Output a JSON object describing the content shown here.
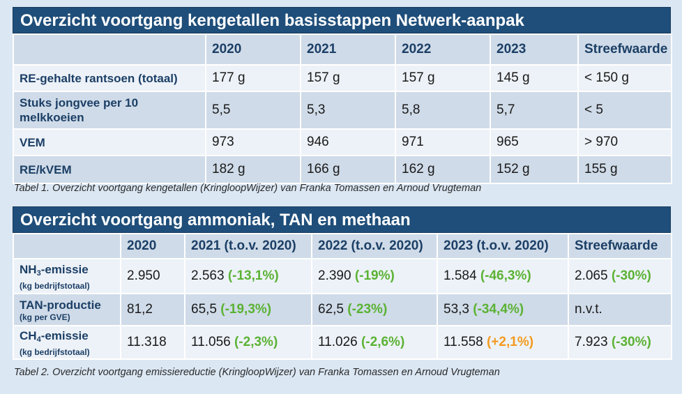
{
  "table1": {
    "title": "Overzicht voortgang kengetallen basisstappen Netwerk-aanpak",
    "headers": [
      "",
      "2020",
      "2021",
      "2022",
      "2023",
      "Streefwaarde"
    ],
    "rows": [
      {
        "label": "RE-gehalte rantsoen (totaal)",
        "cells": [
          "177 g",
          "157 g",
          "157 g",
          "145 g",
          "< 150 g"
        ]
      },
      {
        "label": "Stuks jongvee per 10 melkkoeien",
        "cells": [
          "5,5",
          "5,3",
          "5,8",
          "5,7",
          "< 5"
        ]
      },
      {
        "label": "VEM",
        "cells": [
          "973",
          "946",
          "971",
          "965",
          "> 970"
        ]
      },
      {
        "label": "RE/kVEM",
        "cells": [
          "182 g",
          "166 g",
          "162 g",
          "152 g",
          "155 g"
        ]
      }
    ],
    "caption": "Tabel 1. Overzicht voortgang kengetallen (KringloopWijzer) van Franka Tomassen en Arnoud Vrugteman"
  },
  "table2": {
    "title": "Overzicht voortgang ammoniak, TAN en methaan",
    "headers": [
      "",
      "2020",
      "2021 (t.o.v. 2020)",
      "2022 (t.o.v. 2020)",
      "2023 (t.o.v. 2020)",
      "Streefwaarde"
    ],
    "rows": [
      {
        "label_pre": "NH",
        "label_sub": "3",
        "label_post": "-emissie",
        "sublabel": "(kg bedrijfstotaal)",
        "c2020": "2.950",
        "c2021": {
          "value": "2.563",
          "pct": "(-13,1%)"
        },
        "c2022": {
          "value": "2.390",
          "pct": "(-19%)"
        },
        "c2023": {
          "value": "1.584",
          "pct": "(-46,3%)"
        },
        "target": {
          "value": "2.065",
          "pct": "(-30%)"
        }
      },
      {
        "label_pre": "TAN-productie",
        "label_sub": "",
        "label_post": "",
        "sublabel": "(kg per GVE)",
        "c2020": "81,2",
        "c2021": {
          "value": "65,5",
          "pct": "(-19,3%)"
        },
        "c2022": {
          "value": "62,5",
          "pct": "(-23%)"
        },
        "c2023": {
          "value": "53,3",
          "pct": "(-34,4%)"
        },
        "target": {
          "value": "n.v.t.",
          "pct": ""
        }
      },
      {
        "label_pre": "CH",
        "label_sub": "4",
        "label_post": "-emissie",
        "sublabel": "(kg bedrijfstotaal)",
        "c2020": "11.318",
        "c2021": {
          "value": "11.056",
          "pct": "(-2,3%)"
        },
        "c2022": {
          "value": "11.026",
          "pct": "(-2,6%)"
        },
        "c2023": {
          "value": "11.558",
          "pct": "(+2,1%)"
        },
        "target": {
          "value": "7.923",
          "pct": "(-30%)"
        }
      }
    ],
    "caption": "Tabel 2. Overzicht voortgang emissiereductie (KringloopWijzer) van Franka Tomassen en Arnoud Vrugteman"
  },
  "colors": {
    "title_bg": "#1f4e7a",
    "header_text": "#1c3f66",
    "decrease": "#5bb234",
    "increase": "#f39a1e"
  }
}
